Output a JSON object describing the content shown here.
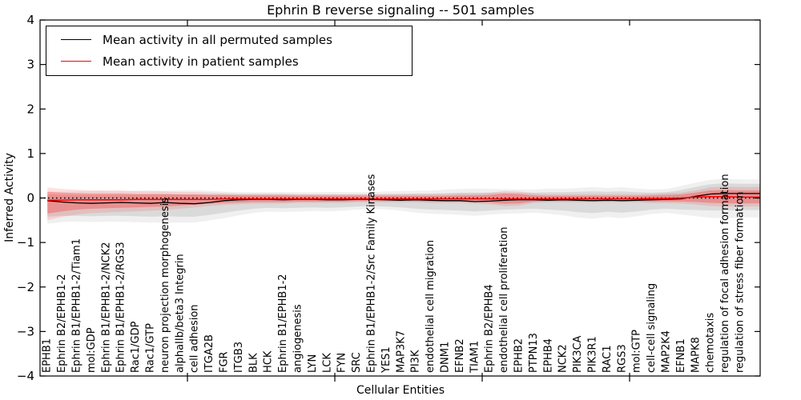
{
  "title": "Ephrin B reverse signaling -- 501 samples",
  "legend": {
    "entries": [
      {
        "label": "Mean activity in all permuted samples",
        "color": "#000000"
      },
      {
        "label": "Mean activity in patient samples",
        "color": "#ff0000"
      }
    ]
  },
  "y_axis": {
    "label": "Inferred Activity",
    "min": -4,
    "max": 4,
    "tick_labels": [
      "4",
      "3",
      "2",
      "1",
      "0",
      "−1",
      "−2",
      "−3",
      "−4"
    ],
    "tick_values": [
      4,
      3,
      2,
      1,
      0,
      -1,
      -2,
      -3,
      -4
    ]
  },
  "x_axis": {
    "label": "Cellular Entities",
    "tick_positions": [
      10,
      20,
      30,
      40
    ]
  },
  "colors": {
    "permuted_line": "#000000",
    "patient_line": "#ff0000",
    "permuted_band": "#8c8c8c",
    "patient_band": "#ff2020",
    "reference_line": "#000000",
    "background": "#ffffff"
  },
  "reference_line": {
    "value": 0,
    "style": "dotted"
  },
  "chart_data": {
    "type": "line",
    "title": "Ephrin B reverse signaling -- 501 samples",
    "xlabel": "Cellular Entities",
    "ylabel": "Inferred Activity",
    "ylim": [
      -4,
      4
    ],
    "grid": false,
    "legend_position": "upper left",
    "categories": [
      "EPHB1",
      "Ephrin B2/EPHB1-2",
      "Ephrin B1/EPHB1-2/Tiam1",
      "mol:GDP",
      "Ephrin B1/EPHB1-2/NCK2",
      "Ephrin B1/EPHB1-2/RGS3",
      "Rac1/GDP",
      "Rac1/GTP",
      "neuron projection morphogenesis",
      "alphaIIb/beta3 Integrin",
      "cell adhesion",
      "ITGA2B",
      "FGR",
      "ITGB3",
      "BLK",
      "HCK",
      "Ephrin B1/EPHB1-2",
      "angiogenesis",
      "LYN",
      "LCK",
      "FYN",
      "SRC",
      "Ephrin B1/EPHB1-2/Src Family Kinases",
      "YES1",
      "MAP3K7",
      "PI3K",
      "endothelial cell migration",
      "DNM1",
      "EFNB2",
      "TIAM1",
      "Ephrin B2/EPHB4",
      "endothelial cell proliferation",
      "EPHB2",
      "PTPN13",
      "EPHB4",
      "NCK2",
      "PIK3CA",
      "PIK3R1",
      "RAC1",
      "RGS3",
      "mol:GTP",
      "cell-cell signaling",
      "MAP2K4",
      "EFNB1",
      "MAPK8",
      "chemotaxis",
      "regulation of focal adhesion formation",
      "regulation of stress fiber formation"
    ],
    "series": [
      {
        "name": "Mean activity in all permuted samples",
        "values": [
          -0.06,
          -0.09,
          -0.11,
          -0.12,
          -0.11,
          -0.1,
          -0.11,
          -0.12,
          -0.1,
          -0.12,
          -0.13,
          -0.1,
          -0.06,
          -0.04,
          -0.03,
          -0.03,
          -0.04,
          -0.03,
          -0.03,
          -0.04,
          -0.04,
          -0.03,
          -0.03,
          -0.04,
          -0.05,
          -0.04,
          -0.05,
          -0.06,
          -0.06,
          -0.08,
          -0.07,
          -0.05,
          -0.04,
          -0.04,
          -0.05,
          -0.04,
          -0.05,
          -0.06,
          -0.05,
          -0.06,
          -0.05,
          -0.04,
          -0.03,
          -0.02,
          0.04,
          0.09,
          0.1,
          0.1
        ],
        "band_low": [
          -0.42,
          -0.4,
          -0.4,
          -0.41,
          -0.4,
          -0.4,
          -0.41,
          -0.42,
          -0.41,
          -0.42,
          -0.42,
          -0.38,
          -0.33,
          -0.28,
          -0.24,
          -0.22,
          -0.23,
          -0.22,
          -0.21,
          -0.22,
          -0.21,
          -0.19,
          -0.18,
          -0.19,
          -0.21,
          -0.24,
          -0.26,
          -0.27,
          -0.28,
          -0.3,
          -0.28,
          -0.26,
          -0.25,
          -0.24,
          -0.26,
          -0.28,
          -0.32,
          -0.34,
          -0.31,
          -0.33,
          -0.3,
          -0.26,
          -0.24,
          -0.26,
          -0.27,
          -0.28,
          -0.28,
          -0.27
        ],
        "band_high": [
          0.08,
          0.07,
          0.07,
          0.07,
          0.07,
          0.07,
          0.08,
          0.08,
          0.08,
          0.08,
          0.08,
          0.08,
          0.08,
          0.08,
          0.08,
          0.08,
          0.08,
          0.08,
          0.08,
          0.08,
          0.08,
          0.08,
          0.08,
          0.09,
          0.09,
          0.1,
          0.1,
          0.11,
          0.12,
          0.12,
          0.12,
          0.12,
          0.12,
          0.12,
          0.13,
          0.13,
          0.14,
          0.15,
          0.14,
          0.15,
          0.13,
          0.12,
          0.13,
          0.18,
          0.25,
          0.31,
          0.33,
          0.32
        ]
      },
      {
        "name": "Mean activity in patient samples",
        "values": [
          -0.05,
          -0.05,
          -0.04,
          -0.04,
          -0.04,
          -0.04,
          -0.03,
          -0.03,
          -0.03,
          -0.03,
          -0.03,
          -0.03,
          -0.02,
          -0.02,
          -0.02,
          -0.02,
          -0.02,
          -0.02,
          -0.02,
          -0.02,
          -0.02,
          -0.02,
          -0.02,
          -0.02,
          -0.02,
          -0.02,
          -0.02,
          -0.02,
          -0.02,
          -0.02,
          -0.02,
          -0.02,
          -0.02,
          -0.02,
          -0.02,
          -0.02,
          -0.02,
          -0.02,
          -0.02,
          -0.02,
          -0.02,
          -0.01,
          -0.01,
          0.0,
          0.02,
          0.03,
          0.03,
          0.02
        ],
        "band_low": [
          -0.35,
          -0.3,
          -0.26,
          -0.24,
          -0.23,
          -0.22,
          -0.21,
          -0.2,
          -0.19,
          -0.17,
          -0.15,
          -0.13,
          -0.11,
          -0.1,
          -0.09,
          -0.09,
          -0.09,
          -0.08,
          -0.08,
          -0.08,
          -0.08,
          -0.07,
          -0.07,
          -0.07,
          -0.07,
          -0.07,
          -0.08,
          -0.08,
          -0.08,
          -0.09,
          -0.1,
          -0.13,
          -0.12,
          -0.08,
          -0.07,
          -0.07,
          -0.07,
          -0.07,
          -0.07,
          -0.07,
          -0.07,
          -0.08,
          -0.08,
          -0.08,
          -0.09,
          -0.11,
          -0.12,
          -0.12
        ],
        "band_high": [
          0.14,
          0.12,
          0.11,
          0.1,
          0.1,
          0.1,
          0.09,
          0.09,
          0.09,
          0.08,
          0.08,
          0.07,
          0.07,
          0.06,
          0.06,
          0.06,
          0.06,
          0.05,
          0.05,
          0.05,
          0.05,
          0.05,
          0.05,
          0.05,
          0.05,
          0.05,
          0.05,
          0.05,
          0.06,
          0.06,
          0.07,
          0.1,
          0.09,
          0.06,
          0.05,
          0.05,
          0.05,
          0.05,
          0.05,
          0.05,
          0.05,
          0.06,
          0.07,
          0.08,
          0.12,
          0.17,
          0.18,
          0.17
        ]
      }
    ],
    "reference_line_value": 0
  }
}
